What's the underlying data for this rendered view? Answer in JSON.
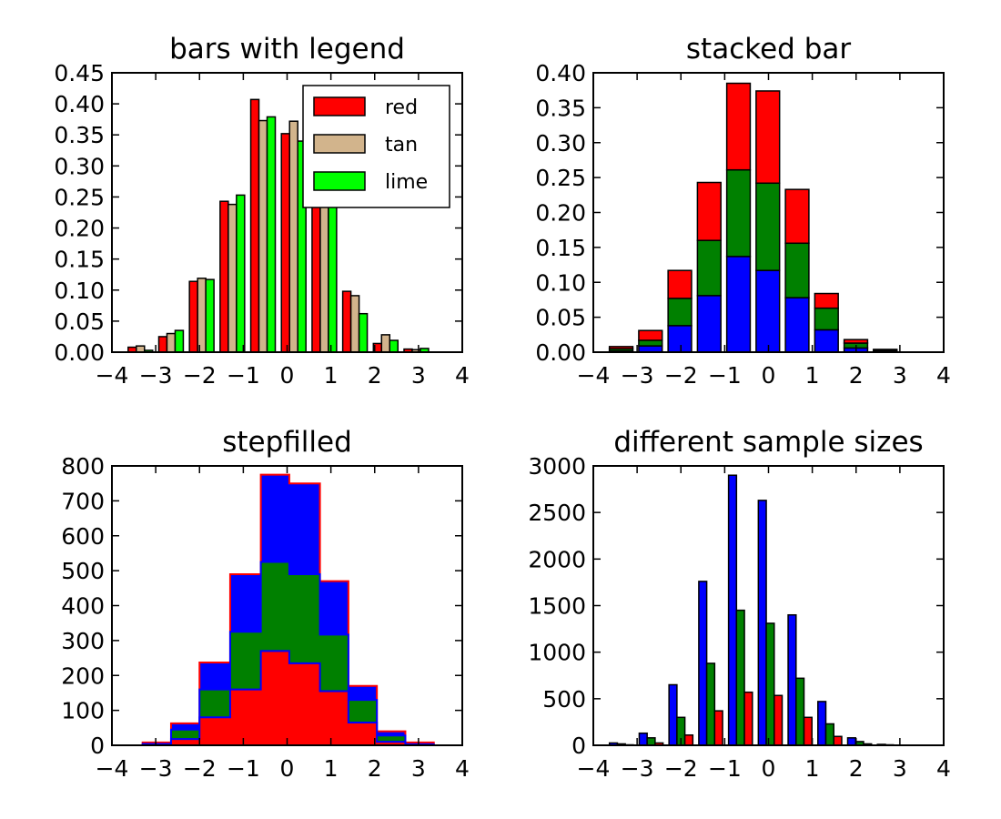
{
  "chart_data": [
    {
      "type": "bar",
      "title": "bars with legend",
      "xlabel": "",
      "ylabel": "",
      "xlim": [
        -4,
        4
      ],
      "ylim": [
        0,
        0.45
      ],
      "xticks": [
        "−4",
        "−3",
        "−2",
        "−1",
        "0",
        "1",
        "2",
        "3",
        "4"
      ],
      "yticks": [
        "0.00",
        "0.05",
        "0.10",
        "0.15",
        "0.20",
        "0.25",
        "0.30",
        "0.35",
        "0.40",
        "0.45"
      ],
      "legend_position": "upper right",
      "bin_edges": [
        -3.7,
        -3.0,
        -2.3,
        -1.6,
        -0.9,
        -0.2,
        0.5,
        1.2,
        1.9,
        2.6,
        3.3
      ],
      "series": [
        {
          "name": "red",
          "color": "#ff0000",
          "values": [
            0.008,
            0.025,
            0.114,
            0.243,
            0.407,
            0.352,
            0.333,
            0.098,
            0.014,
            0.005
          ]
        },
        {
          "name": "tan",
          "color": "#d2b48c",
          "values": [
            0.01,
            0.03,
            0.119,
            0.238,
            0.373,
            0.372,
            0.33,
            0.091,
            0.028,
            0.004
          ]
        },
        {
          "name": "lime",
          "color": "#00ff00",
          "values": [
            0.003,
            0.035,
            0.117,
            0.253,
            0.379,
            0.34,
            0.3,
            0.062,
            0.019,
            0.006
          ]
        }
      ]
    },
    {
      "type": "bar",
      "stacked": true,
      "title": "stacked bar",
      "xlabel": "",
      "ylabel": "",
      "xlim": [
        -4,
        4
      ],
      "ylim": [
        0,
        0.4
      ],
      "xticks": [
        "−4",
        "−3",
        "−2",
        "−1",
        "0",
        "1",
        "2",
        "3",
        "4"
      ],
      "yticks": [
        "0.00",
        "0.05",
        "0.10",
        "0.15",
        "0.20",
        "0.25",
        "0.30",
        "0.35",
        "0.40"
      ],
      "bin_edges": [
        -3.7,
        -3.03,
        -2.36,
        -1.69,
        -1.02,
        -0.35,
        0.32,
        0.99,
        1.66,
        2.33,
        3.0
      ],
      "series": [
        {
          "color": "#0000ff",
          "values": [
            0.002,
            0.009,
            0.038,
            0.081,
            0.137,
            0.117,
            0.078,
            0.032,
            0.006,
            0.001
          ]
        },
        {
          "color": "#008000",
          "values": [
            0.003,
            0.008,
            0.039,
            0.079,
            0.124,
            0.125,
            0.078,
            0.031,
            0.007,
            0.002
          ]
        },
        {
          "color": "#ff0000",
          "values": [
            0.003,
            0.014,
            0.04,
            0.083,
            0.124,
            0.132,
            0.077,
            0.021,
            0.005,
            0.001
          ]
        }
      ]
    },
    {
      "type": "area",
      "histtype": "stepfilled",
      "stacked": true,
      "title": "stepfilled",
      "xlabel": "",
      "ylabel": "",
      "xlim": [
        -4,
        4
      ],
      "ylim": [
        0,
        800
      ],
      "xticks": [
        "−4",
        "−3",
        "−2",
        "−1",
        "0",
        "1",
        "2",
        "3",
        "4"
      ],
      "yticks": [
        "0",
        "100",
        "200",
        "300",
        "400",
        "500",
        "600",
        "700",
        "800"
      ],
      "bin_edges": [
        -3.3,
        -2.65,
        -2.0,
        -1.3,
        -0.6,
        0.05,
        0.75,
        1.4,
        2.05,
        2.7,
        3.35
      ],
      "series": [
        {
          "color": "#ff0000",
          "edge": "#0000ff",
          "values": [
            1,
            18,
            80,
            160,
            270,
            235,
            155,
            65,
            10,
            1
          ]
        },
        {
          "color": "#008000",
          "edge": "#0000ff",
          "values": [
            3,
            27,
            80,
            165,
            255,
            255,
            162,
            65,
            18,
            2
          ]
        },
        {
          "color": "#0000ff",
          "edge": "#ff0000",
          "values": [
            4,
            18,
            77,
            165,
            250,
            260,
            153,
            40,
            12,
            5
          ]
        }
      ]
    },
    {
      "type": "bar",
      "title": "different sample sizes",
      "xlabel": "",
      "ylabel": "",
      "xlim": [
        -4,
        4
      ],
      "ylim": [
        0,
        3000
      ],
      "xticks": [
        "−4",
        "−3",
        "−2",
        "−1",
        "0",
        "1",
        "2",
        "3",
        "4"
      ],
      "yticks": [
        "0",
        "500",
        "1000",
        "1500",
        "2000",
        "2500",
        "3000"
      ],
      "bin_edges": [
        -3.7,
        -3.02,
        -2.34,
        -1.66,
        -0.98,
        -0.3,
        0.38,
        1.06,
        1.74,
        2.42,
        3.1
      ],
      "series": [
        {
          "color": "#0000ff",
          "values": [
            25,
            130,
            650,
            1760,
            2900,
            2630,
            1400,
            470,
            80,
            10
          ]
        },
        {
          "color": "#008000",
          "values": [
            15,
            80,
            300,
            880,
            1450,
            1310,
            720,
            230,
            40,
            5
          ]
        },
        {
          "color": "#ff0000",
          "values": [
            5,
            25,
            110,
            370,
            570,
            535,
            300,
            95,
            15,
            2
          ]
        }
      ]
    }
  ]
}
